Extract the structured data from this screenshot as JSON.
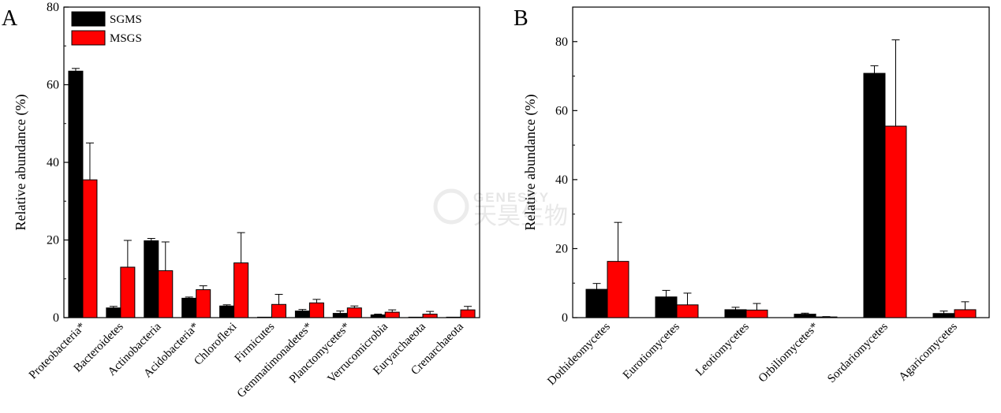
{
  "chart_data": [
    {
      "panel": "A",
      "type": "bar",
      "ylabel": "Relative abundance (%)",
      "ylim": [
        0,
        80
      ],
      "yticks": [
        0,
        20,
        40,
        60,
        80
      ],
      "legend_position": "top-left",
      "categories": [
        "Proteobacteria*",
        "Bacteroidetes",
        "Actinobacteria",
        "Acidobacteria*",
        "Chloroflexi",
        "Firmicutes",
        "Gemmatimonadetes*",
        "Planctomycetes*",
        "Verrucomicrobia",
        "Euryarchaeota",
        "Crenarchaeota"
      ],
      "series": [
        {
          "name": "SGMS",
          "color": "#000000",
          "values": [
            63.5,
            2.5,
            19.8,
            5.0,
            3.0,
            0.1,
            1.7,
            1.1,
            0.7,
            0.05,
            0.05
          ],
          "errors": [
            0.7,
            0.4,
            0.6,
            0.3,
            0.3,
            0.0,
            0.4,
            0.6,
            0.2,
            0.0,
            0.0
          ]
        },
        {
          "name": "MSGS",
          "color": "#ff0000",
          "values": [
            35.5,
            13.0,
            12.1,
            7.2,
            14.1,
            3.4,
            3.8,
            2.5,
            1.4,
            0.9,
            2.0
          ],
          "errors": [
            9.5,
            6.9,
            7.4,
            1.0,
            7.8,
            2.6,
            0.9,
            0.5,
            0.6,
            0.7,
            0.9
          ]
        }
      ]
    },
    {
      "panel": "B",
      "type": "bar",
      "ylabel": "Relative abundance (%)",
      "ylim": [
        0,
        90
      ],
      "yticks": [
        0,
        20,
        40,
        60,
        80
      ],
      "categories": [
        "Dothideomycetes",
        "Eurotiomycetes",
        "Leotiomycetes",
        "Orbiliomycetes*",
        "Sordariomycetes",
        "Agaricomycetes"
      ],
      "series": [
        {
          "name": "SGMS",
          "color": "#000000",
          "values": [
            8.2,
            6.0,
            2.3,
            1.0,
            70.8,
            1.2
          ],
          "errors": [
            1.7,
            1.9,
            0.7,
            0.3,
            2.2,
            0.7
          ]
        },
        {
          "name": "MSGS",
          "color": "#ff0000",
          "values": [
            16.3,
            3.7,
            2.2,
            0.2,
            55.5,
            2.3
          ],
          "errors": [
            11.3,
            3.4,
            1.9,
            0.1,
            25.0,
            2.3
          ]
        }
      ]
    }
  ],
  "watermark": {
    "english": "GENESKY",
    "chinese": "天昊生物"
  }
}
